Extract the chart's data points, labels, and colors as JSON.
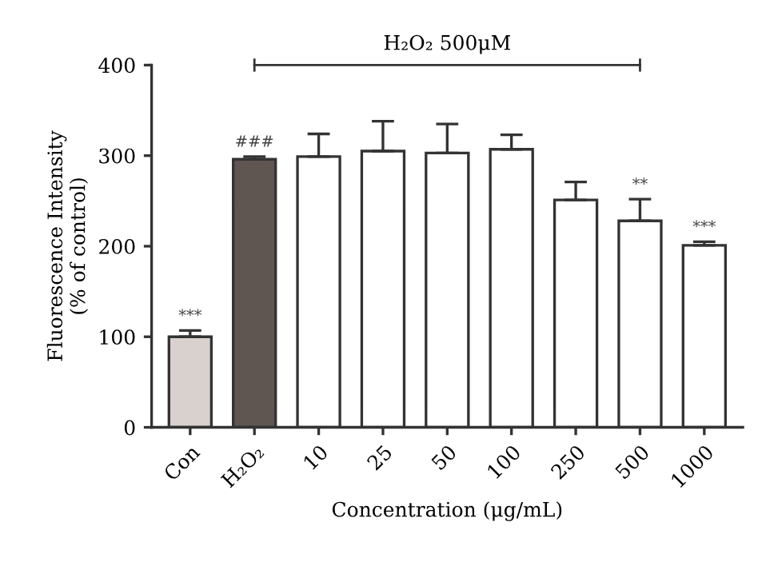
{
  "chart_data": {
    "type": "bar",
    "xlabel": "Concentration (μg/mL)",
    "ylabel": "Fluorescence Intensity\n(% of control)",
    "categories": [
      "Con",
      "H₂O₂",
      "10",
      "25",
      "50",
      "100",
      "250",
      "500",
      "1000"
    ],
    "values": [
      100,
      296,
      299,
      305,
      303,
      307,
      251,
      228,
      201
    ],
    "errors": [
      7,
      3,
      25,
      33,
      32,
      16,
      20,
      24,
      4
    ],
    "colors": [
      "#d8d1ce",
      "#5f5651",
      "#ffffff",
      "#ffffff",
      "#ffffff",
      "#ffffff",
      "#ffffff",
      "#ffffff",
      "#ffffff"
    ],
    "ylim": [
      0,
      400
    ],
    "yticks": [
      0,
      100,
      200,
      300,
      400
    ],
    "grid": false,
    "legend": false,
    "annotations": [
      {
        "text": "***",
        "x": "Con",
        "y": 107
      },
      {
        "text": "###",
        "x": "H₂O₂",
        "y": 299
      },
      {
        "text": "**",
        "x": "500",
        "y": 252
      },
      {
        "text": "***",
        "x": "1000",
        "y": 205
      },
      "H₂O₂ 500μM"
    ]
  }
}
